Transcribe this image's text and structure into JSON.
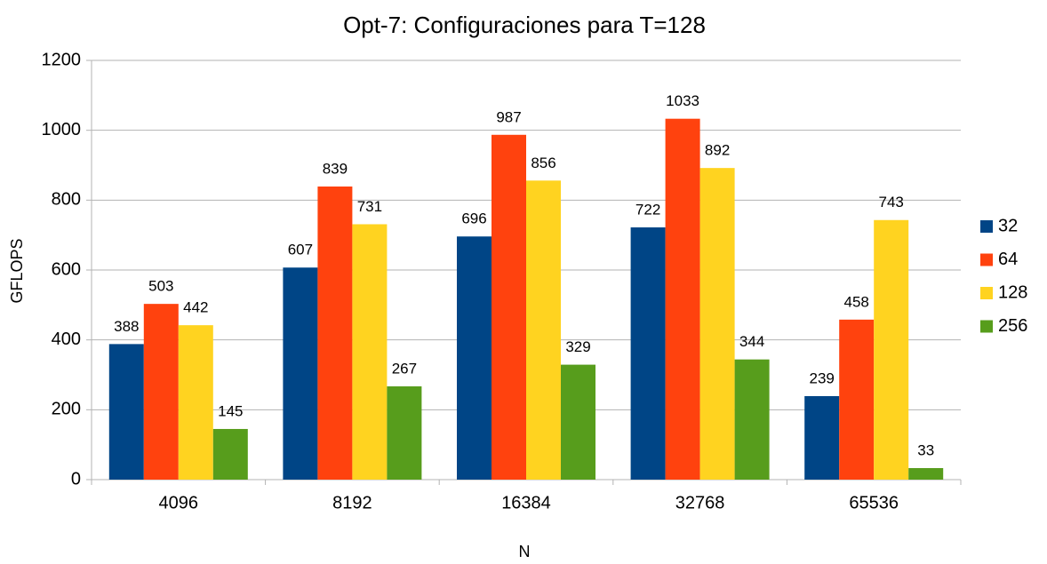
{
  "chart_data": {
    "type": "bar",
    "title": "Opt-7: Configuraciones para T=128",
    "x_label": "N",
    "y_label": "GFLOPS",
    "categories": [
      "4096",
      "8192",
      "16384",
      "32768",
      "65536"
    ],
    "series": [
      {
        "name": "32",
        "color": "#004586",
        "values": [
          388,
          607,
          696,
          722,
          239
        ]
      },
      {
        "name": "64",
        "color": "#ff420e",
        "values": [
          503,
          839,
          987,
          1033,
          458
        ]
      },
      {
        "name": "128",
        "color": "#ffd320",
        "values": [
          442,
          731,
          856,
          892,
          743
        ]
      },
      {
        "name": "256",
        "color": "#579d1c",
        "values": [
          145,
          267,
          329,
          344,
          33
        ]
      }
    ],
    "ylim": [
      0,
      1200
    ],
    "yticks": [
      0,
      200,
      400,
      600,
      800,
      1000,
      1200
    ],
    "grid": true,
    "legend": "right"
  }
}
